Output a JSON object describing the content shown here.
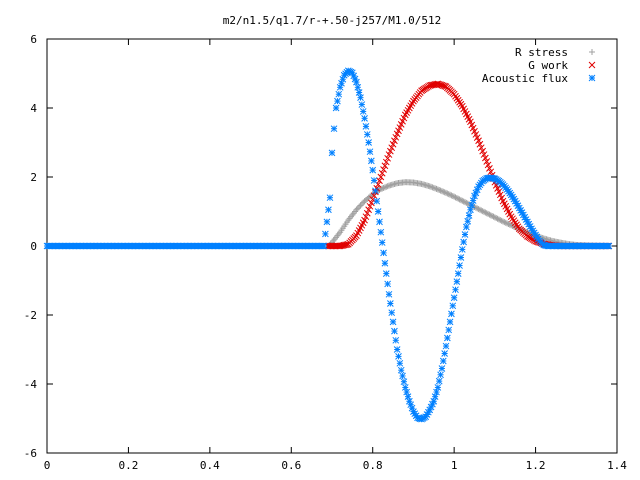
{
  "chart_data": {
    "type": "scatter",
    "title": "m2/n1.5/q1.7/r-+.50-j257/M1.0/512",
    "xlabel": "",
    "ylabel": "",
    "xlim": [
      0,
      1.4
    ],
    "ylim": [
      -6,
      6
    ],
    "x_ticks": [
      "0",
      "0.2",
      "0.4",
      "0.6",
      "0.8",
      "1",
      "1.2",
      "1.4"
    ],
    "y_ticks": [
      "-6",
      "-4",
      "-2",
      "0",
      "2",
      "4",
      "6"
    ],
    "x_tick_values": [
      0,
      0.2,
      0.4,
      0.6,
      0.8,
      1.0,
      1.2,
      1.4
    ],
    "y_tick_values": [
      -6,
      -4,
      -2,
      0,
      2,
      4,
      6
    ],
    "grid": false,
    "legend_position": "top-right",
    "series": [
      {
        "name": "R stress",
        "color": "#a0a0a0",
        "marker": "plus",
        "x": [
          0.0,
          0.1,
          0.2,
          0.3,
          0.4,
          0.5,
          0.6,
          0.69,
          0.7,
          0.72,
          0.74,
          0.76,
          0.78,
          0.8,
          0.82,
          0.84,
          0.86,
          0.88,
          0.9,
          0.92,
          0.94,
          0.96,
          0.98,
          1.0,
          1.02,
          1.04,
          1.06,
          1.08,
          1.1,
          1.12,
          1.14,
          1.16,
          1.18,
          1.2,
          1.22,
          1.24,
          1.26,
          1.28,
          1.3,
          1.32,
          1.34,
          1.36,
          1.38
        ],
        "y": [
          0,
          0,
          0,
          0,
          0,
          0,
          0,
          0,
          0.1,
          0.4,
          0.75,
          1.05,
          1.3,
          1.5,
          1.65,
          1.75,
          1.82,
          1.85,
          1.84,
          1.8,
          1.73,
          1.64,
          1.54,
          1.43,
          1.31,
          1.19,
          1.07,
          0.95,
          0.83,
          0.71,
          0.6,
          0.49,
          0.39,
          0.3,
          0.22,
          0.15,
          0.1,
          0.06,
          0.03,
          0.02,
          0.01,
          0.0,
          0.0
        ]
      },
      {
        "name": "G work",
        "color": "#e00000",
        "marker": "cross",
        "x": [
          0.69,
          0.72,
          0.74,
          0.76,
          0.78,
          0.8,
          0.82,
          0.84,
          0.86,
          0.88,
          0.9,
          0.92,
          0.94,
          0.96,
          0.98,
          1.0,
          1.02,
          1.04,
          1.06,
          1.08,
          1.1,
          1.12,
          1.14,
          1.16,
          1.18,
          1.2,
          1.22,
          1.24,
          1.26,
          1.28,
          1.3,
          1.32,
          1.34,
          1.36,
          1.38
        ],
        "y": [
          0,
          0,
          0.05,
          0.3,
          0.75,
          1.35,
          2.0,
          2.65,
          3.25,
          3.8,
          4.2,
          4.5,
          4.65,
          4.7,
          4.62,
          4.4,
          4.05,
          3.6,
          3.05,
          2.45,
          1.85,
          1.3,
          0.85,
          0.5,
          0.28,
          0.14,
          0.06,
          0.02,
          0,
          0,
          0,
          0,
          0,
          0,
          0
        ]
      },
      {
        "name": "Acoustic flux",
        "color": "#0080ff",
        "marker": "star",
        "x": [
          0.0,
          0.1,
          0.2,
          0.3,
          0.4,
          0.5,
          0.6,
          0.68,
          0.695,
          0.7,
          0.705,
          0.71,
          0.72,
          0.73,
          0.74,
          0.75,
          0.76,
          0.77,
          0.78,
          0.79,
          0.8,
          0.81,
          0.82,
          0.83,
          0.84,
          0.85,
          0.86,
          0.87,
          0.88,
          0.89,
          0.9,
          0.91,
          0.92,
          0.93,
          0.94,
          0.95,
          0.96,
          0.97,
          0.98,
          0.99,
          1.0,
          1.01,
          1.02,
          1.03,
          1.04,
          1.05,
          1.06,
          1.07,
          1.08,
          1.09,
          1.1,
          1.11,
          1.12,
          1.13,
          1.14,
          1.15,
          1.16,
          1.17,
          1.18,
          1.19,
          1.2,
          1.21,
          1.22,
          1.23,
          1.24,
          1.25,
          1.26,
          1.27,
          1.28,
          1.29,
          1.3,
          1.31,
          1.32,
          1.33,
          1.34,
          1.35,
          1.36,
          1.37,
          1.38
        ],
        "y": [
          0,
          0,
          0,
          0,
          0,
          0,
          0,
          0,
          1.4,
          2.7,
          3.4,
          4.0,
          4.6,
          4.95,
          5.08,
          5.02,
          4.75,
          4.3,
          3.7,
          3.0,
          2.2,
          1.3,
          0.4,
          -0.5,
          -1.4,
          -2.2,
          -3.0,
          -3.6,
          -4.1,
          -4.5,
          -4.8,
          -4.98,
          -5.02,
          -4.95,
          -4.75,
          -4.5,
          -4.1,
          -3.55,
          -2.9,
          -2.2,
          -1.5,
          -0.8,
          -0.1,
          0.55,
          1.05,
          1.45,
          1.72,
          1.88,
          1.96,
          1.98,
          1.95,
          1.88,
          1.78,
          1.64,
          1.48,
          1.3,
          1.1,
          0.9,
          0.7,
          0.5,
          0.32,
          0.15,
          0.03,
          0,
          0,
          0,
          0,
          0,
          0,
          0,
          0,
          0,
          0,
          0,
          0,
          0,
          0,
          0,
          0
        ]
      }
    ]
  }
}
